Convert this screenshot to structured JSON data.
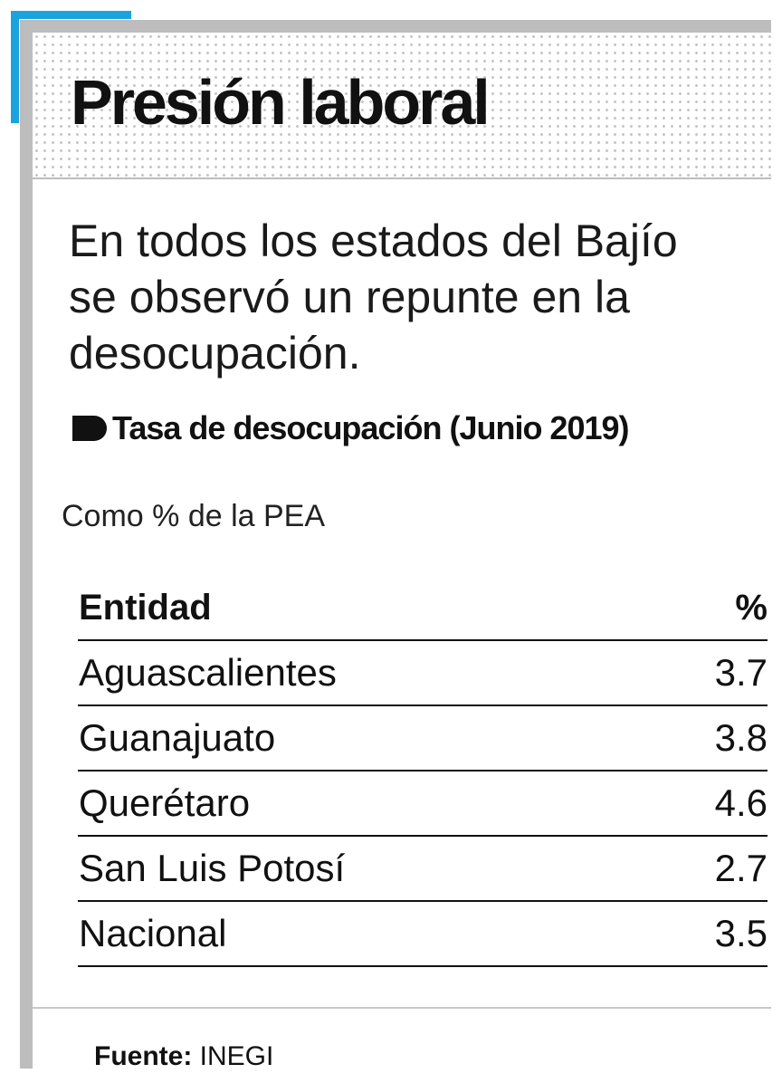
{
  "header": {
    "title": "Presión laboral"
  },
  "subtitle": [
    "En todos los estados del Bajío",
    "se observó un repunte en la",
    "desocupación."
  ],
  "table_title": "Tasa de desocupación (Junio 2019)",
  "unit_note": "Como % de la PEA",
  "table": {
    "columns": [
      "Entidad",
      "%"
    ],
    "rows": [
      [
        "Aguascalientes",
        3.7
      ],
      [
        "Guanajuato",
        3.8
      ],
      [
        "Querétaro",
        4.6
      ],
      [
        "San Luis Potosí",
        2.7
      ],
      [
        "Nacional",
        3.5
      ]
    ]
  },
  "source": {
    "label": "Fuente:",
    "value": "INEGI"
  }
}
